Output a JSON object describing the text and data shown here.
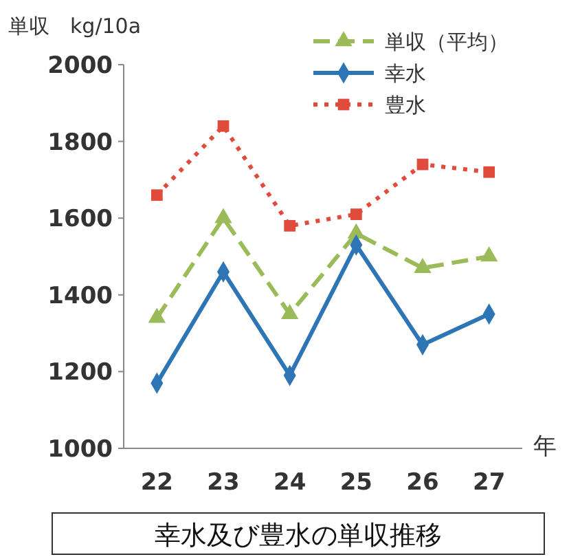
{
  "chart_data": {
    "type": "line",
    "title": "幸水及び豊水の単収推移",
    "ylabel": "単収　kg/10a",
    "xlabel": "年",
    "categories": [
      "22",
      "23",
      "24",
      "25",
      "26",
      "27"
    ],
    "series": [
      {
        "name": "単収（平均）",
        "color": "#9bbb59",
        "marker": "triangle",
        "line_style": "dashed",
        "values": [
          1340,
          1600,
          1350,
          1560,
          1470,
          1500
        ]
      },
      {
        "name": "幸水",
        "color": "#2e75b6",
        "marker": "diamond",
        "line_style": "solid",
        "values": [
          1170,
          1460,
          1190,
          1530,
          1270,
          1350
        ]
      },
      {
        "name": "豊水",
        "color": "#e04b3c",
        "marker": "square",
        "line_style": "dotted",
        "values": [
          1660,
          1840,
          1580,
          1610,
          1740,
          1720
        ]
      }
    ],
    "ylim": [
      1000,
      2000
    ],
    "yticks": [
      1000,
      1200,
      1400,
      1600,
      1800,
      2000
    ],
    "grid": false,
    "legend": "top right"
  }
}
